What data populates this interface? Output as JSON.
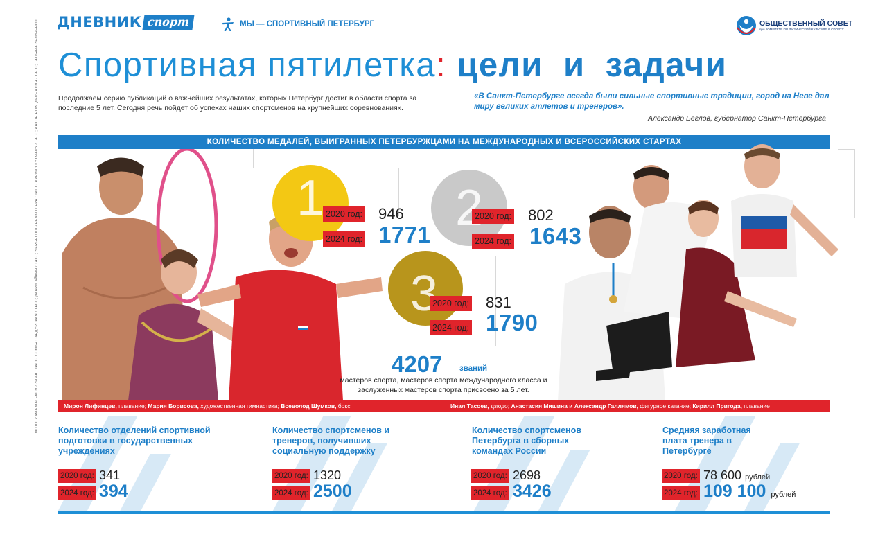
{
  "header": {
    "logo_dnevnik_word": "ДНЕВНИК",
    "logo_dnevnik_sport": "спорт",
    "logo_my_text": "МЫ — СПОРТИВНЫЙ ПЕТЕРБУРГ",
    "logo_council_line1": "ОБЩЕСТВЕННЫЙ СОВЕТ",
    "logo_council_line2": "при КОМИТЕТЕ ПО ФИЗИЧЕСКОЙ КУЛЬТУРЕ И СПОРТУ"
  },
  "title": {
    "part1": "Спортивная пятилетка",
    "colon": ":",
    "part2": "цели и задачи"
  },
  "intro": "Продолжаем серию публикаций о важнейших результатах, которых Петербург достиг в области спорта за последние 5 лет. Сегодня речь пойдет об успехах наших спортсменов на крупнейших соревнованиях.",
  "quote": {
    "text": "«В Санкт-Петербурге всегда были сильные спортивные традиции, город на Неве дал миру великих атлетов и тренеров».",
    "author": "Александр Беглов, губернатор Санкт-Петербурга"
  },
  "medals": {
    "banner": "КОЛИЧЕСТВО МЕДАЛЕЙ, ВЫИГРАННЫХ ПЕТЕРБУРЖЦАМИ НА МЕЖДУНАРОДНЫХ И ВСЕРОССИЙСКИХ СТАРТАХ",
    "year_2020": "2020 год:",
    "year_2024": "2024 год:",
    "gold": {
      "place": "1",
      "v2020": "946",
      "v2024": "1771",
      "color": "#f3c814"
    },
    "silver": {
      "place": "2",
      "v2020": "802",
      "v2024": "1643",
      "color": "#c9c9c9"
    },
    "bronze": {
      "place": "3",
      "v2020": "831",
      "v2024": "1790",
      "color": "#b8951c"
    }
  },
  "titles": {
    "count": "4207",
    "word": "званий",
    "desc": "мастеров спорта, мастеров спорта международного класса и заслуженных мастеров спорта присвоено за 5 лет."
  },
  "captions": {
    "left": {
      "n1": "Мирон Лифинцев,",
      "s1": " плавание; ",
      "n2": "Мария Борисова,",
      "s2": " художественная гимнастика; ",
      "n3": "Всеволод Шумков,",
      "s3": " бокс"
    },
    "right": {
      "n1": "Инал Тасоев,",
      "s1": " дзюдо; ",
      "n2": "Анастасия Мишина и Александр Галлямов,",
      "s2": " фигурное катание; ",
      "n3": "Кирилл Пригода,",
      "s3": " плавание"
    }
  },
  "credits": "ФОТО: ZAMA MALEKOV / ЗИМА / ТАСС; СОФЬЯ САНДУРСКАЯ / ТАСС; ДАНИЛ АЙКИН / ТАСС; SERGEI DOLZHENKO / EPA / ТАСС; КИРИЛЛ КУХМАРЬ / ТАСС; АНТОН НОВОДЕРЕЖКИН / ТАСС; ТАТЬЯНА ЗЕЛИЧЕНКО",
  "stats": [
    {
      "title": "Количество отделений спортивной подготовки в государственных учреждениях",
      "v2020": "341",
      "v2024": "394",
      "unit": ""
    },
    {
      "title": "Количество спортсменов и тренеров, получивших социальную поддержку",
      "v2020": "1320",
      "v2024": "2500",
      "unit": ""
    },
    {
      "title": "Количество спортсменов Петербурга в сборных командах России",
      "v2020": "2698",
      "v2024": "3426",
      "unit": ""
    },
    {
      "title": "Средняя заработная плата тренера в Петербурге",
      "v2020": "78 600",
      "v2024": "109 100",
      "unit": "рублей"
    }
  ],
  "colors": {
    "brand_blue": "#1e7fc8",
    "accent_red": "#e0242b"
  }
}
